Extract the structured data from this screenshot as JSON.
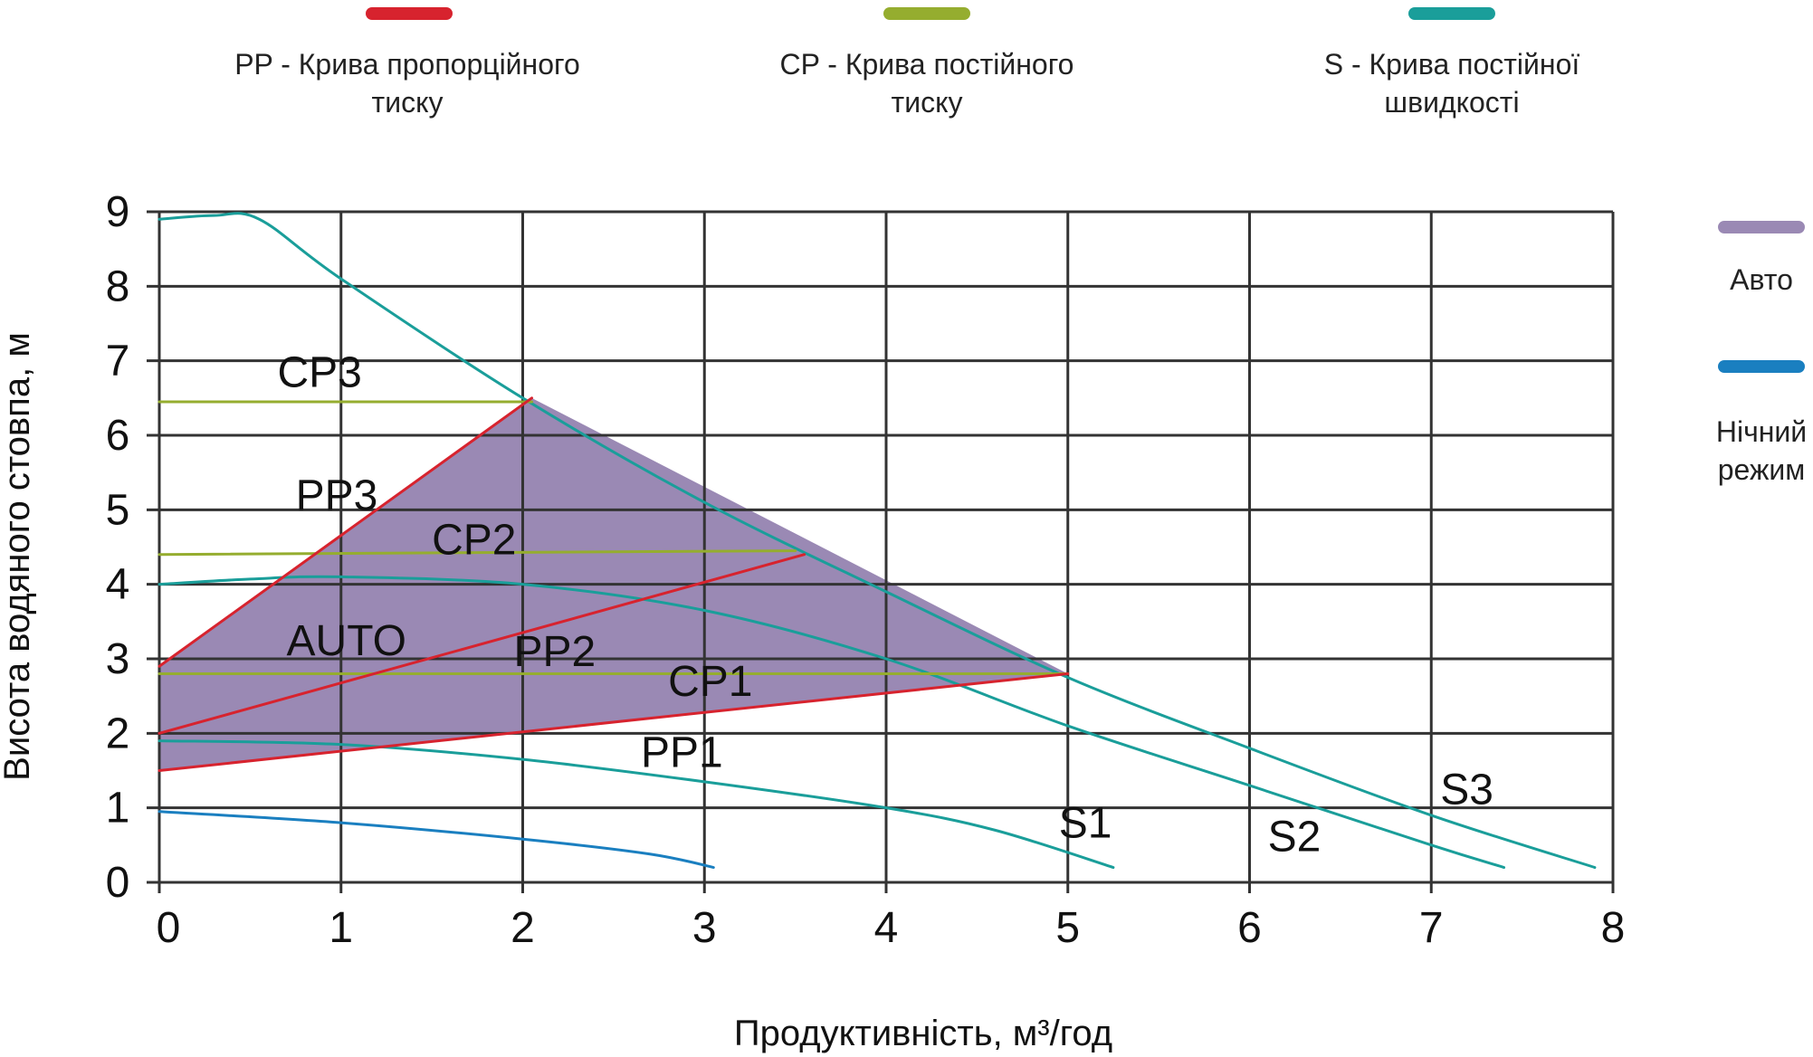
{
  "colors": {
    "pp": "#d7232e",
    "cp": "#95ad2f",
    "s": "#1a9e9a",
    "auto": "#9a89b4",
    "night": "#1a7fc0",
    "grid": "#333333"
  },
  "legend_top": [
    {
      "key": "pp",
      "line1": "PP -  Крива пропорційного",
      "line2": "тиску"
    },
    {
      "key": "cp",
      "line1": "CP - Крива постійного",
      "line2": "тиску"
    },
    {
      "key": "s",
      "line1": "S - Крива постійної",
      "line2": "швидкості"
    }
  ],
  "legend_side": [
    {
      "key": "auto",
      "line1": "Авто",
      "line2": ""
    },
    {
      "key": "night",
      "line1": "Нічний",
      "line2": "режим"
    }
  ],
  "chart_data": {
    "type": "line",
    "xlabel": "Продуктивність, м³/год",
    "ylabel": "Висота водяного стовпа, м",
    "xlim": [
      0,
      8
    ],
    "ylim": [
      0,
      9
    ],
    "x_ticks": [
      "0",
      "1",
      "2",
      "3",
      "4",
      "5",
      "6",
      "7",
      "8"
    ],
    "y_ticks": [
      "0",
      "1",
      "2",
      "3",
      "4",
      "5",
      "6",
      "7",
      "8",
      "9"
    ],
    "grid": true,
    "auto_region": [
      [
        0,
        2.9
      ],
      [
        2.05,
        6.5
      ],
      [
        5.0,
        2.8
      ],
      [
        0,
        1.5
      ]
    ],
    "series": [
      {
        "name": "S3",
        "color_key": "s",
        "points": [
          [
            0,
            8.9
          ],
          [
            0.3,
            8.95
          ],
          [
            0.55,
            8.9
          ],
          [
            1.0,
            8.1
          ],
          [
            2.0,
            6.5
          ],
          [
            3.0,
            5.1
          ],
          [
            4.0,
            3.9
          ],
          [
            5.0,
            2.75
          ],
          [
            6.0,
            1.8
          ],
          [
            7.0,
            0.9
          ],
          [
            7.9,
            0.2
          ]
        ]
      },
      {
        "name": "S2",
        "color_key": "s",
        "points": [
          [
            0,
            4.0
          ],
          [
            0.5,
            4.07
          ],
          [
            1.0,
            4.1
          ],
          [
            2.0,
            4.0
          ],
          [
            3.0,
            3.65
          ],
          [
            4.0,
            3.0
          ],
          [
            5.0,
            2.1
          ],
          [
            6.0,
            1.3
          ],
          [
            7.0,
            0.5
          ],
          [
            7.4,
            0.2
          ]
        ]
      },
      {
        "name": "S1",
        "color_key": "s",
        "points": [
          [
            0,
            1.9
          ],
          [
            1.0,
            1.85
          ],
          [
            2.0,
            1.65
          ],
          [
            3.0,
            1.35
          ],
          [
            4.0,
            1.0
          ],
          [
            4.6,
            0.7
          ],
          [
            5.25,
            0.2
          ]
        ]
      },
      {
        "name": "",
        "color_key": "night",
        "points": [
          [
            0,
            0.95
          ],
          [
            1.0,
            0.8
          ],
          [
            2.0,
            0.58
          ],
          [
            2.7,
            0.38
          ],
          [
            3.05,
            0.2
          ]
        ]
      },
      {
        "name": "CP3",
        "color_key": "cp",
        "points": [
          [
            0,
            6.45
          ],
          [
            2.05,
            6.45
          ]
        ]
      },
      {
        "name": "CP2",
        "color_key": "cp",
        "points": [
          [
            0,
            4.4
          ],
          [
            3.5,
            4.45
          ]
        ]
      },
      {
        "name": "CP1",
        "color_key": "cp",
        "points": [
          [
            0,
            2.8
          ],
          [
            5.0,
            2.8
          ]
        ]
      },
      {
        "name": "PP3",
        "color_key": "pp",
        "points": [
          [
            0,
            2.9
          ],
          [
            2.05,
            6.5
          ]
        ]
      },
      {
        "name": "PP2",
        "color_key": "pp",
        "points": [
          [
            0,
            2.0
          ],
          [
            3.55,
            4.4
          ]
        ]
      },
      {
        "name": "PP1",
        "color_key": "pp",
        "points": [
          [
            0,
            1.5
          ],
          [
            5.0,
            2.8
          ]
        ]
      }
    ],
    "annotations": [
      {
        "text": "CP3",
        "x": 0.65,
        "y": 6.65
      },
      {
        "text": "PP3",
        "x": 0.75,
        "y": 5.0
      },
      {
        "text": "CP2",
        "x": 1.5,
        "y": 4.4
      },
      {
        "text": "AUTO",
        "x": 0.7,
        "y": 3.05
      },
      {
        "text": "PP2",
        "x": 1.95,
        "y": 2.9
      },
      {
        "text": "CP1",
        "x": 2.8,
        "y": 2.5
      },
      {
        "text": "PP1",
        "x": 2.65,
        "y": 1.55
      },
      {
        "text": "S1",
        "x": 4.95,
        "y": 0.6
      },
      {
        "text": "S2",
        "x": 6.1,
        "y": 0.42
      },
      {
        "text": "S3",
        "x": 7.05,
        "y": 1.05
      }
    ]
  }
}
